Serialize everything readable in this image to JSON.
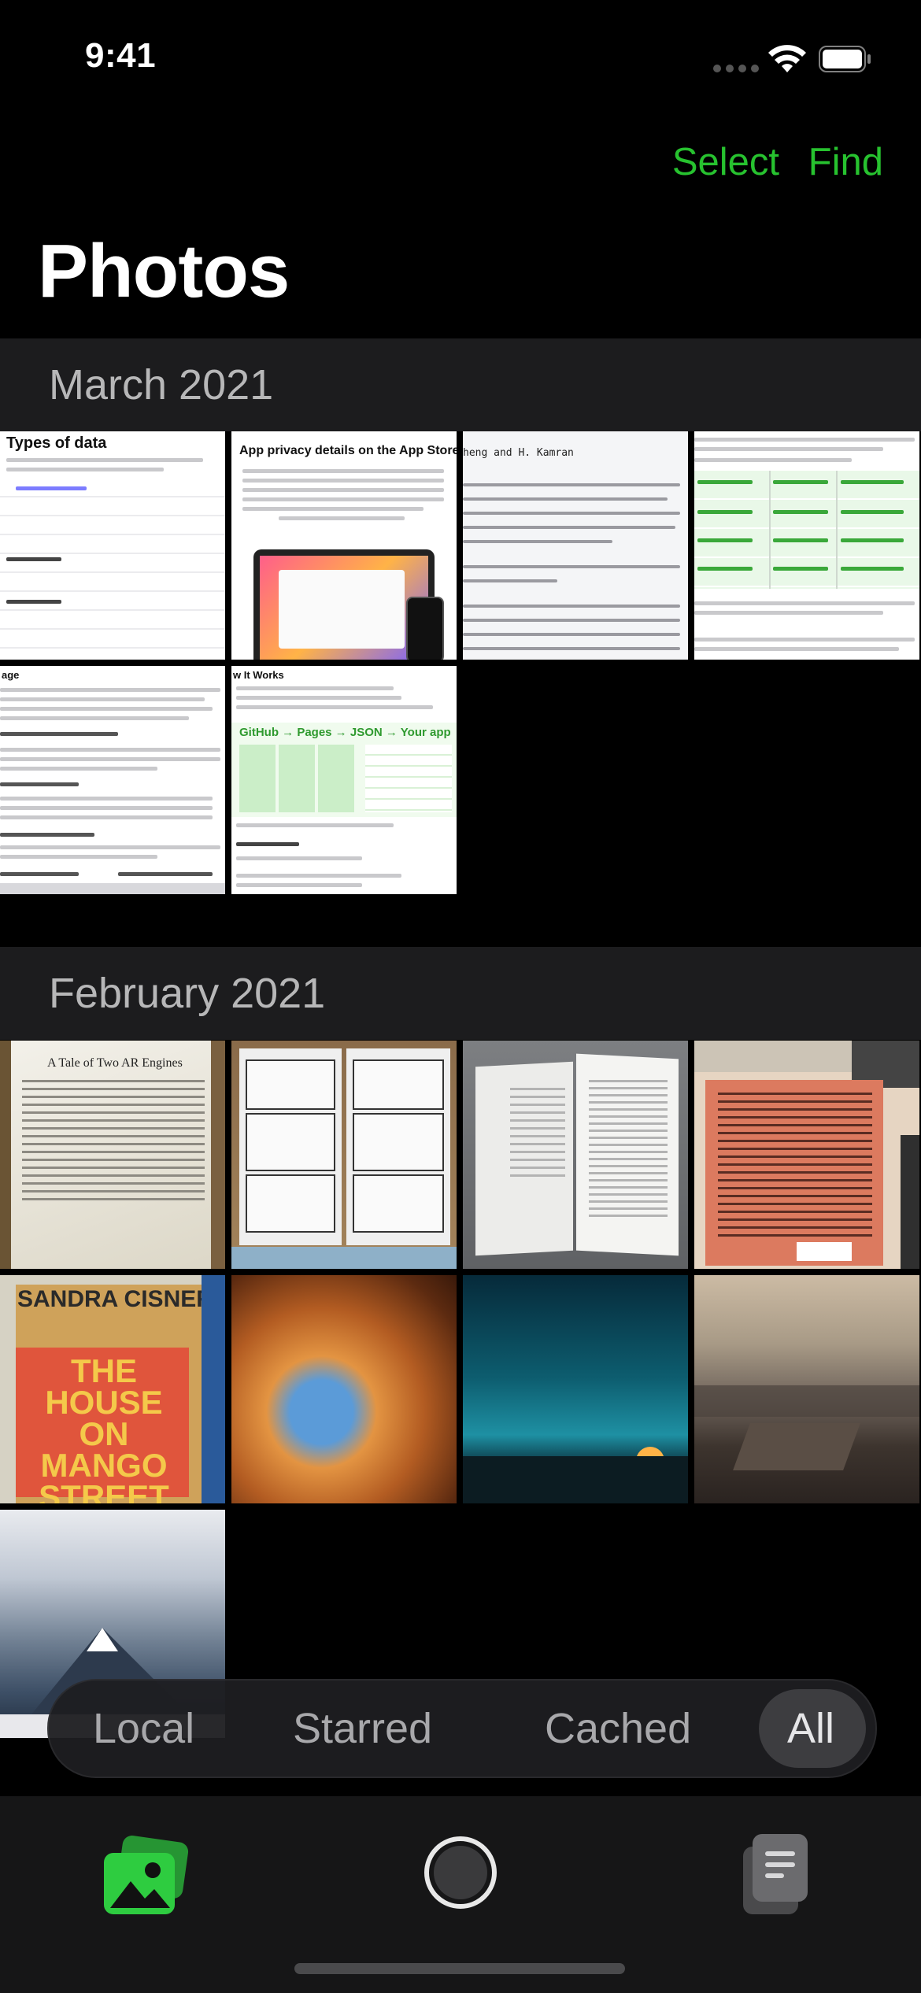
{
  "status_bar": {
    "time": "9:41"
  },
  "nav": {
    "select_label": "Select",
    "find_label": "Find",
    "title": "Photos"
  },
  "sections": [
    {
      "title": "March 2021"
    },
    {
      "title": "February 2021"
    }
  ],
  "thumbnails": {
    "march": [
      {
        "heading": "Types of data"
      },
      {
        "heading": "App privacy details on the App Store"
      },
      {
        "heading": "heng and H. Kamran"
      },
      {
        "heading": ""
      },
      {
        "heading": "age"
      },
      {
        "heading": "w It Works"
      }
    ],
    "february": [
      {
        "heading": "A Tale of Two AR Engines"
      },
      {
        "heading": ""
      },
      {
        "heading": ""
      },
      {
        "heading": ""
      },
      {
        "heading": "SANDRA CISNEROS"
      },
      {
        "heading": ""
      },
      {
        "heading": ""
      },
      {
        "heading": ""
      },
      {
        "heading": ""
      }
    ],
    "tiles_text": {
      "github_pages": "GitHub → Pages → JSON → Your app",
      "mango_title": "THE HOUSE ON MANGO STREET"
    }
  },
  "filters": {
    "items": [
      "Local",
      "Starred",
      "Cached",
      "All"
    ],
    "selected": "All"
  },
  "tab_bar": {
    "tabs": [
      {
        "icon": "photos-icon",
        "active": true
      },
      {
        "icon": "camera-shutter-icon",
        "active": false
      },
      {
        "icon": "documents-icon",
        "active": false
      }
    ]
  },
  "colors": {
    "accent": "#27c22f",
    "section_header_bg": "#1c1c1e",
    "tabbar_bg": "#161617"
  }
}
